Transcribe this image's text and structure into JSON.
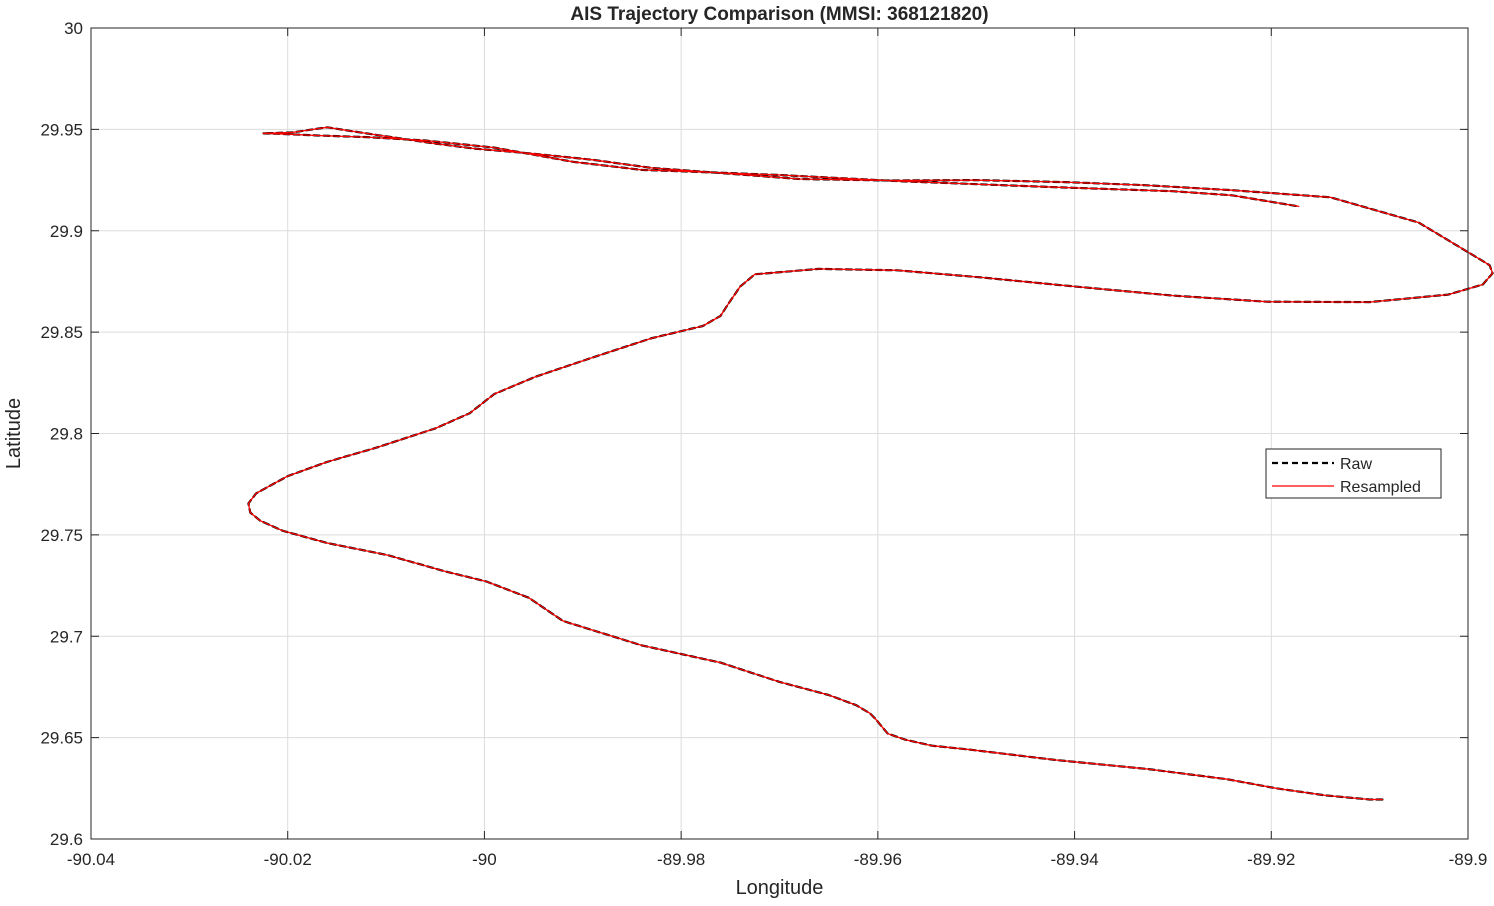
{
  "chart_data": {
    "type": "line",
    "title": "AIS Trajectory Comparison (MMSI: 368121820)",
    "xlabel": "Longitude",
    "ylabel": "Latitude",
    "xlim": [
      -90.04,
      -89.9
    ],
    "ylim": [
      29.6,
      30
    ],
    "xticks": [
      -90.04,
      -90.02,
      -90,
      -89.98,
      -89.96,
      -89.94,
      -89.92,
      -89.9
    ],
    "xtick_labels": [
      "-90.04",
      "-90.02",
      "-90",
      "-89.98",
      "-89.96",
      "-89.94",
      "-89.92",
      "-89.9"
    ],
    "yticks": [
      29.6,
      29.65,
      29.7,
      29.75,
      29.8,
      29.85,
      29.9,
      29.95,
      30
    ],
    "ytick_labels": [
      "29.6",
      "29.65",
      "29.7",
      "29.75",
      "29.8",
      "29.85",
      "29.9",
      "29.95",
      "30"
    ],
    "grid": true,
    "legend_position": "right",
    "series": [
      {
        "name": "Raw",
        "color": "#000000",
        "style": "dashed",
        "x": [
          -89.9087,
          -89.9096,
          -89.91,
          -89.9145,
          -89.9195,
          -89.9245,
          -89.9325,
          -89.942,
          -89.9505,
          -89.9545,
          -89.9572,
          -89.959,
          -89.9602,
          -89.9608,
          -89.9622,
          -89.965,
          -89.97,
          -89.976,
          -89.984,
          -89.992,
          -89.9955,
          -89.9998,
          -90.004,
          -90.0098,
          -90.016,
          -90.0205,
          -90.0228,
          -90.0238,
          -90.024,
          -90.0232,
          -90.02,
          -90.016,
          -90.011,
          -90.005,
          -90.0015,
          -89.999,
          -89.9948,
          -89.989,
          -89.983,
          -89.9778,
          -89.976,
          -89.9752,
          -89.974,
          -89.9725,
          -89.966,
          -89.958,
          -89.9495,
          -89.94,
          -89.93,
          -89.9205,
          -89.91,
          -89.902,
          -89.8985,
          -89.8975,
          -89.8978,
          -89.8995,
          -89.905,
          -89.914,
          -89.924,
          -89.933,
          -89.941,
          -89.95,
          -89.959,
          -89.968,
          -89.976,
          -89.983,
          -89.989,
          -89.995,
          -90.001,
          -90.005,
          -90.0085,
          -90.012,
          -90.016,
          -90.0195,
          -90.0225,
          -90.0208,
          -90.017,
          -90.012,
          -90.006,
          -89.999,
          -89.991,
          -89.984,
          -89.978,
          -89.97,
          -89.958,
          -89.942,
          -89.93,
          -89.924,
          -89.9172
        ],
        "y": [
          29.6195,
          29.6195,
          29.6195,
          29.6215,
          29.625,
          29.6295,
          29.6345,
          29.639,
          29.644,
          29.646,
          29.649,
          29.652,
          29.659,
          29.662,
          29.666,
          29.671,
          29.6775,
          29.687,
          29.6955,
          29.7075,
          29.719,
          29.727,
          29.732,
          29.74,
          29.746,
          29.752,
          29.757,
          29.761,
          29.7655,
          29.7705,
          29.779,
          29.786,
          29.793,
          29.8025,
          29.81,
          29.8195,
          29.828,
          29.8375,
          29.847,
          29.853,
          29.858,
          29.864,
          29.8725,
          29.8785,
          29.8812,
          29.8805,
          29.877,
          29.8725,
          29.868,
          29.865,
          29.8648,
          29.8685,
          29.8735,
          29.879,
          29.883,
          29.888,
          29.904,
          29.9165,
          29.92,
          29.9225,
          29.924,
          29.925,
          29.9248,
          29.9255,
          29.9285,
          29.931,
          29.935,
          29.938,
          29.9405,
          29.943,
          29.9455,
          29.948,
          29.951,
          29.9485,
          29.948,
          29.9478,
          29.947,
          29.9462,
          29.9445,
          29.941,
          29.934,
          29.93,
          29.929,
          29.9275,
          29.9245,
          29.9215,
          29.9195,
          29.9175,
          29.912
        ]
      },
      {
        "name": "Resampled",
        "color": "#ff0000",
        "style": "solid",
        "x": [
          -89.9087,
          -89.9096,
          -89.91,
          -89.9145,
          -89.9195,
          -89.9245,
          -89.9325,
          -89.942,
          -89.9505,
          -89.9545,
          -89.9572,
          -89.959,
          -89.9602,
          -89.9608,
          -89.9622,
          -89.965,
          -89.97,
          -89.976,
          -89.984,
          -89.992,
          -89.9955,
          -89.9998,
          -90.004,
          -90.0098,
          -90.016,
          -90.0205,
          -90.0228,
          -90.0238,
          -90.024,
          -90.0232,
          -90.02,
          -90.016,
          -90.011,
          -90.005,
          -90.0015,
          -89.999,
          -89.9948,
          -89.989,
          -89.983,
          -89.9778,
          -89.976,
          -89.9752,
          -89.974,
          -89.9725,
          -89.966,
          -89.958,
          -89.9495,
          -89.94,
          -89.93,
          -89.9205,
          -89.91,
          -89.902,
          -89.8985,
          -89.8975,
          -89.8978,
          -89.8995,
          -89.905,
          -89.914,
          -89.924,
          -89.933,
          -89.941,
          -89.95,
          -89.959,
          -89.968,
          -89.976,
          -89.983,
          -89.989,
          -89.995,
          -90.001,
          -90.005,
          -90.0085,
          -90.012,
          -90.016,
          -90.0195,
          -90.0225,
          -90.0208,
          -90.017,
          -90.012,
          -90.006,
          -89.999,
          -89.991,
          -89.984,
          -89.978,
          -89.97,
          -89.958,
          -89.942,
          -89.93,
          -89.924,
          -89.9172
        ],
        "y": [
          29.6195,
          29.6195,
          29.6195,
          29.6215,
          29.625,
          29.6295,
          29.6345,
          29.639,
          29.644,
          29.646,
          29.649,
          29.652,
          29.659,
          29.662,
          29.666,
          29.671,
          29.6775,
          29.687,
          29.6955,
          29.7075,
          29.719,
          29.727,
          29.732,
          29.74,
          29.746,
          29.752,
          29.757,
          29.761,
          29.7655,
          29.7705,
          29.779,
          29.786,
          29.793,
          29.8025,
          29.81,
          29.8195,
          29.828,
          29.8375,
          29.847,
          29.853,
          29.858,
          29.864,
          29.8725,
          29.8785,
          29.8812,
          29.8805,
          29.877,
          29.8725,
          29.868,
          29.865,
          29.8648,
          29.8685,
          29.8735,
          29.879,
          29.883,
          29.888,
          29.904,
          29.9165,
          29.92,
          29.9225,
          29.924,
          29.925,
          29.9248,
          29.9255,
          29.9285,
          29.931,
          29.935,
          29.938,
          29.9405,
          29.943,
          29.9455,
          29.948,
          29.951,
          29.9485,
          29.948,
          29.9478,
          29.947,
          29.9462,
          29.9445,
          29.941,
          29.934,
          29.93,
          29.929,
          29.9275,
          29.9245,
          29.9215,
          29.9195,
          29.9175,
          29.912
        ]
      }
    ]
  }
}
